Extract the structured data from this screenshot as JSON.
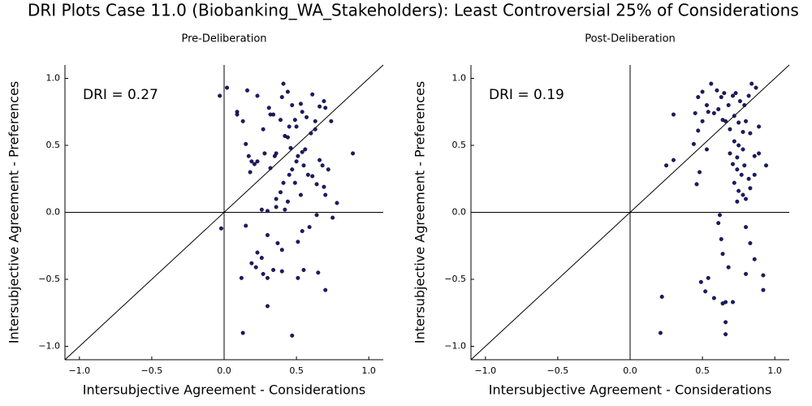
{
  "title": "DRI Plots Case 11.0 (Biobanking_WA_Stakeholders): Least Controversial 25% of Considerations",
  "chart_data": [
    {
      "type": "scatter",
      "title": "Pre-Deliberation",
      "xlabel": "Intersubjective Agreement - Considerations",
      "ylabel": "Intersubjective Agreement - Preferences",
      "annotations": [
        "DRI = 0.27"
      ],
      "annotation_color": "#ff0000",
      "color": "#1a1a6e",
      "xlim": [
        -1.1,
        1.1
      ],
      "ylim": [
        -1.1,
        1.1
      ],
      "xticks": [
        {
          "value": -1,
          "label": "−1.0"
        },
        {
          "value": -0.5,
          "label": "−0.5"
        },
        {
          "value": 0,
          "label": "0.0"
        },
        0.5,
        {
          "value": 1,
          "label": "1.0"
        }
      ],
      "yticks": [
        {
          "value": -1,
          "label": "−1.0"
        },
        {
          "value": -0.5,
          "label": "−0.5"
        },
        {
          "value": 0,
          "label": "0.0"
        },
        0.5,
        {
          "value": 1,
          "label": "1.0"
        }
      ],
      "x": [
        -0.03,
        0.02,
        0.09,
        0.09,
        -0.02,
        0.16,
        0.23,
        0.13,
        0.15,
        0.17,
        0.18,
        0.19,
        0.21,
        0.23,
        0.27,
        0.28,
        0.31,
        0.32,
        0.34,
        0.32,
        0.35,
        0.36,
        0.39,
        0.4,
        0.41,
        0.44,
        0.42,
        0.44,
        0.46,
        0.45,
        0.47,
        0.49,
        0.5,
        0.53,
        0.54,
        0.57,
        0.61,
        0.63,
        0.66,
        0.69,
        0.7,
        0.74,
        0.89,
        0.63,
        0.6,
        0.56,
        0.54,
        0.51,
        0.5,
        0.47,
        0.45,
        0.41,
        0.39,
        0.36,
        0.44,
        0.49,
        0.53,
        0.55,
        0.58,
        0.61,
        0.64,
        0.66,
        0.68,
        0.69,
        0.72,
        0.75,
        0.78,
        0.26,
        0.3,
        0.36,
        0.42,
        0.15,
        0.23,
        0.26,
        0.19,
        0.22,
        0.37,
        0.4,
        0.51,
        0.54,
        0.59,
        0.27,
        0.3,
        0.34,
        0.4,
        0.55,
        0.51,
        0.65,
        0.7,
        0.12,
        0.3,
        0.13,
        0.47,
        0.7,
        0.64,
        0.3
      ],
      "values": [
        0.87,
        0.93,
        0.75,
        0.73,
        -0.12,
        0.91,
        0.87,
        0.68,
        0.51,
        0.42,
        0.3,
        0.38,
        0.36,
        0.38,
        0.62,
        0.44,
        0.78,
        0.73,
        0.73,
        0.33,
        0.42,
        0.44,
        0.69,
        0.86,
        0.96,
        0.9,
        0.57,
        0.56,
        0.48,
        0.64,
        0.8,
        0.69,
        0.64,
        0.81,
        0.75,
        0.71,
        0.88,
        0.68,
        0.79,
        0.83,
        0.78,
        0.68,
        0.44,
        0.62,
        0.59,
        0.47,
        0.45,
        0.42,
        0.38,
        0.32,
        0.28,
        0.22,
        0.15,
        0.1,
        0.08,
        0.22,
        0.13,
        0.35,
        0.28,
        0.27,
        0.21,
        0.39,
        0.35,
        0.19,
        0.32,
        -0.04,
        0.07,
        0.02,
        0.01,
        0.04,
        0.02,
        -0.1,
        -0.3,
        -0.34,
        -0.38,
        -0.41,
        -0.23,
        -0.28,
        -0.22,
        -0.14,
        -0.11,
        -0.46,
        -0.49,
        -0.43,
        -0.44,
        -0.43,
        -0.49,
        -0.45,
        -0.58,
        -0.49,
        -0.7,
        -0.9,
        -0.92,
        0.13,
        -0.02,
        -0.17
      ]
    },
    {
      "type": "scatter",
      "title": "Post-Deliberation",
      "xlabel": "Intersubjective Agreement - Considerations",
      "ylabel": "Intersubjective Agreement - Preferences",
      "annotations": [
        "DRI = 0.19"
      ],
      "annotation_color": "#ff0000",
      "color": "#1a1a6e",
      "xlim": [
        -1.1,
        1.1
      ],
      "ylim": [
        -1.1,
        1.1
      ],
      "xticks": [
        {
          "value": -1,
          "label": "−1.0"
        },
        {
          "value": -0.5,
          "label": "−0.5"
        },
        {
          "value": 0,
          "label": "0.0"
        },
        0.5,
        {
          "value": 1,
          "label": "1.0"
        }
      ],
      "yticks": [
        {
          "value": -1,
          "label": "−1.0"
        },
        {
          "value": -0.5,
          "label": "−0.5"
        },
        {
          "value": 0,
          "label": "0.0"
        },
        0.5,
        {
          "value": 1,
          "label": "1.0"
        }
      ],
      "x": [
        0.3,
        0.25,
        0.3,
        0.47,
        0.5,
        0.53,
        0.56,
        0.6,
        0.63,
        0.65,
        0.68,
        0.71,
        0.73,
        0.76,
        0.79,
        0.82,
        0.84,
        0.87,
        0.89,
        0.45,
        0.47,
        0.5,
        0.54,
        0.58,
        0.61,
        0.64,
        0.66,
        0.69,
        0.72,
        0.75,
        0.78,
        0.8,
        0.83,
        0.72,
        0.75,
        0.78,
        0.69,
        0.74,
        0.86,
        0.89,
        0.94,
        0.71,
        0.74,
        0.77,
        0.79,
        0.82,
        0.86,
        0.72,
        0.75,
        0.78,
        0.74,
        0.8,
        0.83,
        0.48,
        0.46,
        0.62,
        0.61,
        0.63,
        0.64,
        0.68,
        0.8,
        0.83,
        0.86,
        0.54,
        0.49,
        0.52,
        0.58,
        0.8,
        0.92,
        0.92,
        0.66,
        0.71,
        0.64,
        0.66,
        0.66,
        0.22,
        0.21,
        0.44,
        0.53
      ],
      "values": [
        0.73,
        0.35,
        0.39,
        0.86,
        0.9,
        0.8,
        0.96,
        0.91,
        0.86,
        0.89,
        0.8,
        0.87,
        0.89,
        0.83,
        0.8,
        0.87,
        0.96,
        0.93,
        0.64,
        0.74,
        0.61,
        0.68,
        0.75,
        0.74,
        0.77,
        0.69,
        0.68,
        0.62,
        0.72,
        0.67,
        0.6,
        0.68,
        0.59,
        0.53,
        0.5,
        0.47,
        0.44,
        0.41,
        0.42,
        0.44,
        0.35,
        0.36,
        0.32,
        0.28,
        0.35,
        0.25,
        0.28,
        0.22,
        0.16,
        0.13,
        0.08,
        0.1,
        0.18,
        0.3,
        0.21,
        -0.02,
        -0.08,
        -0.2,
        -0.31,
        -0.41,
        -0.11,
        -0.23,
        -0.35,
        -0.49,
        -0.52,
        -0.59,
        -0.64,
        -0.46,
        -0.47,
        -0.58,
        -0.67,
        -0.67,
        -0.68,
        -0.82,
        -0.91,
        -0.63,
        -0.9,
        0.51,
        0.47
      ]
    }
  ]
}
